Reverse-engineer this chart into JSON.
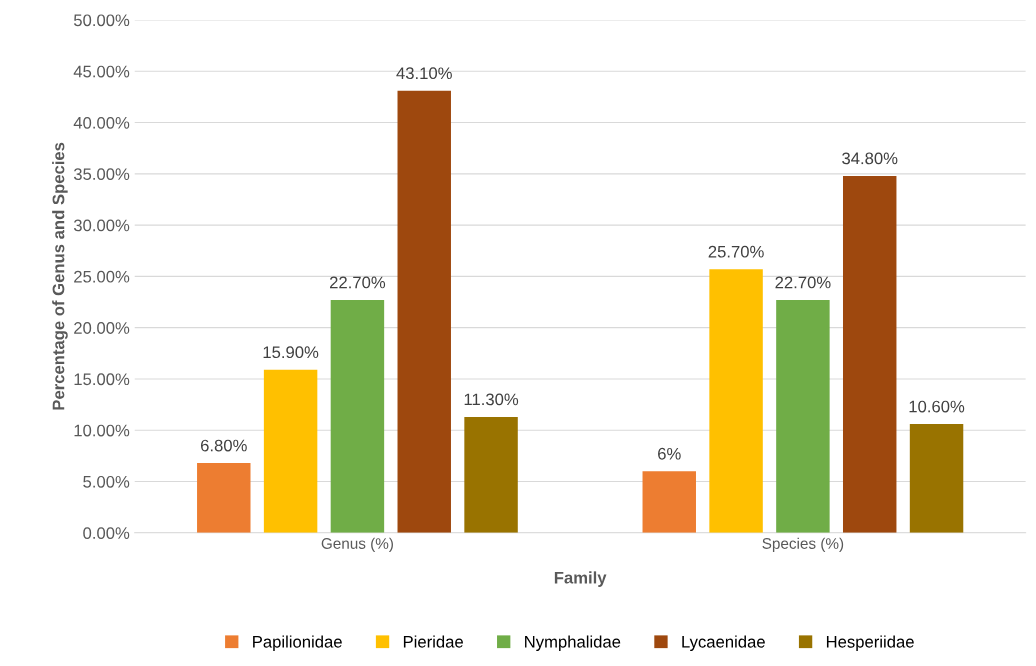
{
  "chart_data": {
    "type": "bar",
    "xlabel": "Family",
    "ylabel": "Percentage of Genus and Species",
    "categories": [
      "Genus (%)",
      "Species (%)"
    ],
    "series": [
      {
        "name": "Papilionidae",
        "color": "#ed7d31",
        "values": [
          6.8,
          6
        ],
        "value_labels": [
          "6.80%",
          "6%"
        ]
      },
      {
        "name": "Pieridae",
        "color": "#ffc000",
        "values": [
          15.9,
          25.7
        ],
        "value_labels": [
          "15.90%",
          "25.70%"
        ]
      },
      {
        "name": "Nymphalidae",
        "color": "#70ad47",
        "values": [
          22.7,
          22.7
        ],
        "value_labels": [
          "22.70%",
          "22.70%"
        ]
      },
      {
        "name": "Lycaenidae",
        "color": "#9e480e",
        "values": [
          43.1,
          34.8
        ],
        "value_labels": [
          "43.10%",
          "34.80%"
        ]
      },
      {
        "name": "Hesperiidae",
        "color": "#997300",
        "values": [
          11.3,
          10.6
        ],
        "value_labels": [
          "11.30%",
          "10.60%"
        ]
      }
    ],
    "ylim": [
      0,
      50
    ],
    "yticks": [
      {
        "value": 0,
        "label": "0.00%"
      },
      {
        "value": 5,
        "label": "5.00%"
      },
      {
        "value": 10,
        "label": "10.00%"
      },
      {
        "value": 15,
        "label": "15.00%"
      },
      {
        "value": 20,
        "label": "20.00%"
      },
      {
        "value": 25,
        "label": "25.00%"
      },
      {
        "value": 30,
        "label": "30.00%"
      },
      {
        "value": 35,
        "label": "35.00%"
      },
      {
        "value": 40,
        "label": "40.00%"
      },
      {
        "value": 45,
        "label": "45.00%"
      },
      {
        "value": 50,
        "label": "50.00%"
      }
    ],
    "grid": "y",
    "legend": "bottom"
  }
}
